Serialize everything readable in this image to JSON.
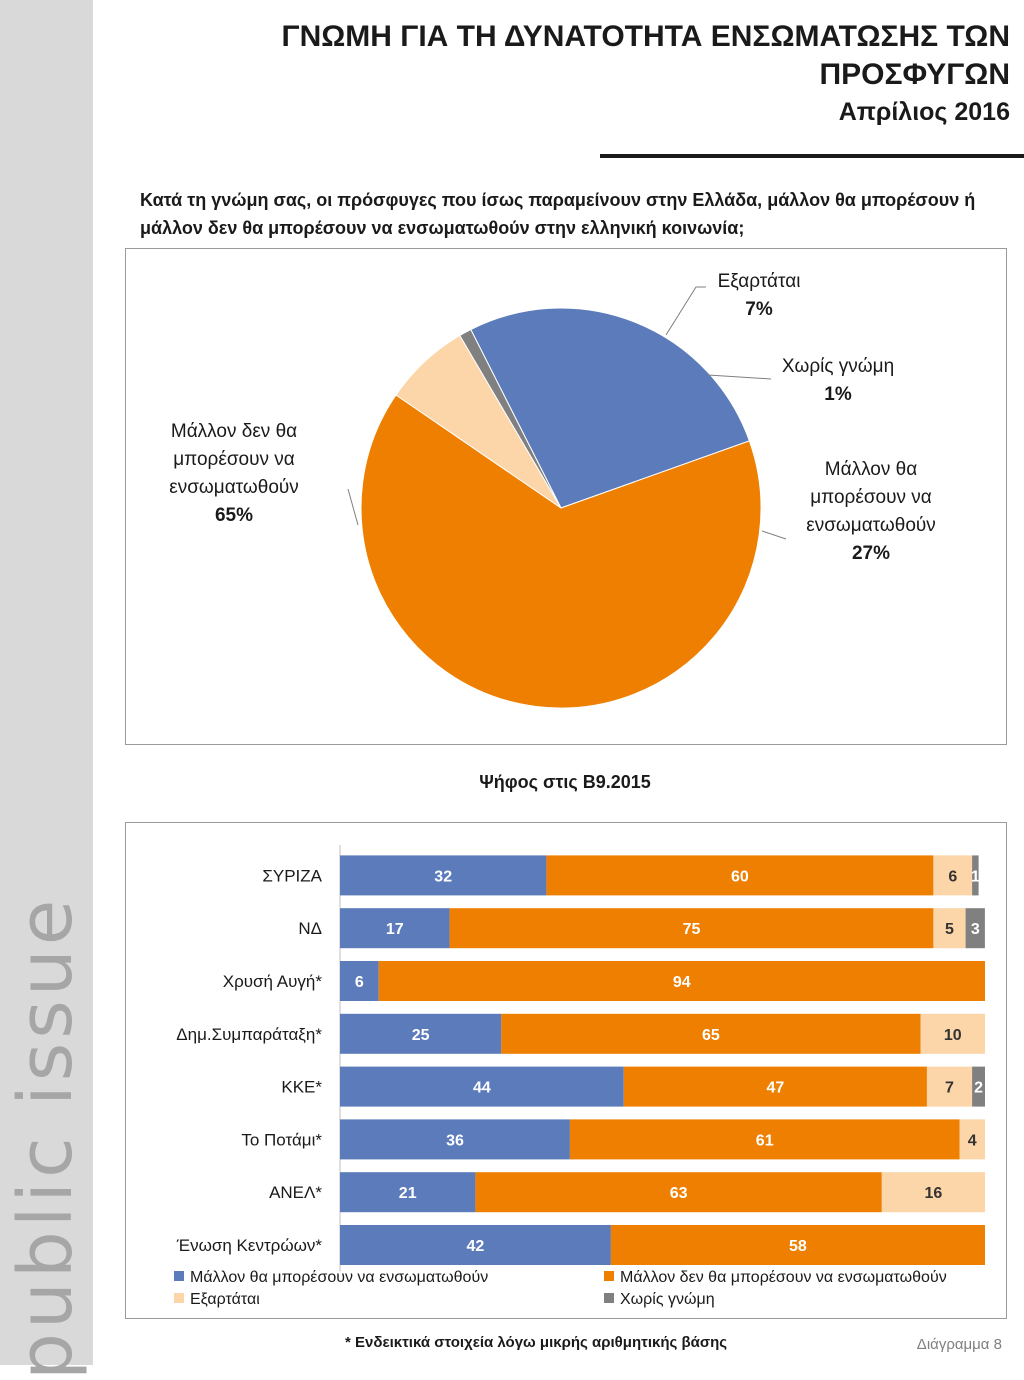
{
  "brand": "public issue",
  "title": "ΓΝΩΜΗ ΓΙΑ ΤΗ ΔΥΝΑΤΟΤΗΤΑ ΕΝΣΩΜΑΤΩΣΗΣ ΤΩΝ ΠΡΟΣΦΥΓΩΝ",
  "subtitle": "Απρίλιος 2016",
  "question": "Κατά τη γνώμη σας, οι πρόσφυγες που ίσως παραμείνουν στην Ελλάδα, μάλλον θα μπορέσουν ή μάλλον δεν θα μπορέσουν να ενσωματωθούν στην ελληνική κοινωνία;",
  "footnote": "* Ενδεικτικά στοιχεία λόγω μικρής αριθμητικής βάσης",
  "diagram_label": "Διάγραμμα 8",
  "chart_data": [
    {
      "type": "pie",
      "slices": [
        {
          "name": "Μάλλον θα μπορέσουν να ενσωματωθούν",
          "label_lines": [
            "Μάλλον θα",
            "μπορέσουν να",
            "ενσωματωθούν"
          ],
          "value": 27,
          "value_label": "27%",
          "color": "#5b7bbb"
        },
        {
          "name": "Μάλλον δεν θα μπορέσουν να ενσωματωθούν",
          "label_lines": [
            "Μάλλον δεν θα",
            "μπορέσουν να",
            "ενσωματωθούν"
          ],
          "value": 65,
          "value_label": "65%",
          "color": "#ee7f00"
        },
        {
          "name": "Εξαρτάται",
          "label_lines": [
            "Εξαρτάται"
          ],
          "value": 7,
          "value_label": "7%",
          "color": "#fcd5a8"
        },
        {
          "name": "Χωρίς γνώμη",
          "label_lines": [
            "Χωρίς γνώμη"
          ],
          "value": 1,
          "value_label": "1%",
          "color": "#808080"
        }
      ]
    },
    {
      "type": "bar",
      "orientation": "horizontal",
      "stacked": true,
      "title": "Ψήφος στις Β9.2015",
      "categories": [
        "ΣΥΡΙΖΑ",
        "ΝΔ",
        "Χρυσή Αυγή*",
        "Δημ.Συμπαράταξη*",
        "ΚΚΕ*",
        "Το Ποτάμι*",
        "ΑΝΕΛ*",
        "Ένωση Κεντρώων*"
      ],
      "series": [
        {
          "name": "Μάλλον θα μπορέσουν να ενσωματωθούν",
          "color": "#5b7bbb",
          "label_color": "#ffffff",
          "values": [
            32,
            17,
            6,
            25,
            44,
            36,
            21,
            42
          ]
        },
        {
          "name": "Μάλλον δεν θα μπορέσουν να ενσωματωθούν",
          "color": "#ee7f00",
          "label_color": "#ffffff",
          "values": [
            60,
            75,
            94,
            65,
            47,
            61,
            63,
            58
          ]
        },
        {
          "name": "Εξαρτάται",
          "color": "#fcd5a8",
          "label_color": "#333333",
          "values": [
            6,
            5,
            null,
            10,
            7,
            4,
            16,
            null
          ]
        },
        {
          "name": "Χωρίς γνώμη",
          "color": "#808080",
          "label_color": "#ffffff",
          "values": [
            1,
            3,
            null,
            null,
            2,
            null,
            null,
            null
          ]
        }
      ],
      "legend_position": "bottom"
    }
  ]
}
